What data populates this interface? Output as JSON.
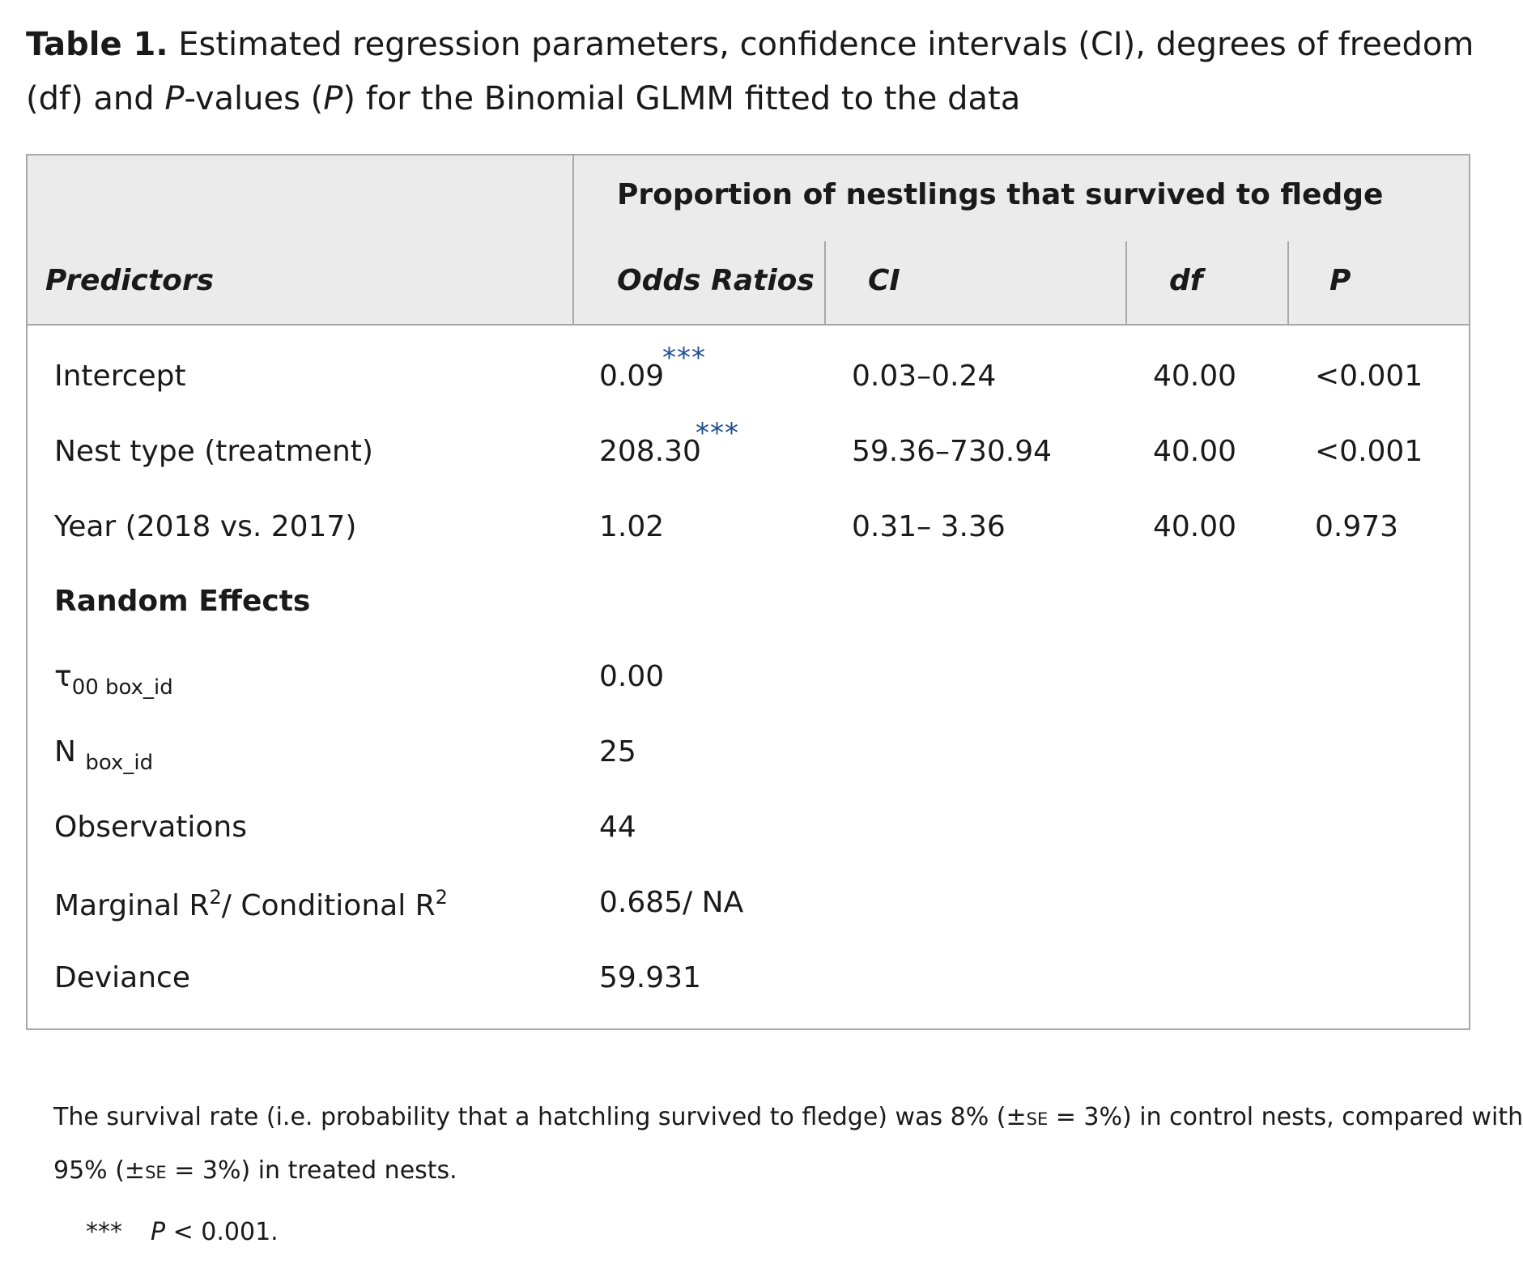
{
  "caption": {
    "label": "Table 1.",
    "part1": " Estimated regression parameters, confidence intervals (CI), degrees of freedom (df) and ",
    "p_italic_1": "P",
    "part2": "-values (",
    "p_italic_2": "P",
    "part3": ") for the Binomial GLMM fitted to the data"
  },
  "header": {
    "group_title": "Proportion of nestlings that survived to fledge",
    "columns": [
      "Predictors",
      "Odds Ratios",
      "CI",
      "df",
      "P"
    ]
  },
  "rows": [
    {
      "predictor": "Intercept",
      "odds": "0.09",
      "stars": "***",
      "ci": "0.03–0.24",
      "df": "40.00",
      "p": "<0.001"
    },
    {
      "predictor": "Nest type (treatment)",
      "odds": "208.30",
      "stars": "***",
      "ci": "59.36–730.94",
      "df": "40.00",
      "p": "<0.001"
    },
    {
      "predictor": "Year (2018 vs. 2017)",
      "odds": "1.02",
      "stars": "",
      "ci": "0.31– 3.36",
      "df": "40.00",
      "p": "0.973"
    }
  ],
  "random_effects": {
    "heading": "Random Effects",
    "tau_symbol": "τ",
    "tau_sub": "00 box_id",
    "tau_value": "0.00",
    "n_symbol": "N",
    "n_sub": "box_id",
    "n_value": "25",
    "observations_label": "Observations",
    "observations_value": "44",
    "r2_label_a": "Marginal R",
    "r2_sup": "2",
    "r2_label_b": "/ Conditional R",
    "r2_value": "0.685/ NA",
    "deviance_label": "Deviance",
    "deviance_value": "59.931"
  },
  "footnote": {
    "line1_a": "The survival rate (i.e. probability that a hatchling survived to fledge) was 8% (±",
    "se": "SE",
    "line1_b": " = 3%) in control nests, compared with",
    "line2_a": "95% (±",
    "line2_b": " = 3%) in treated nests.",
    "legend_stars": "***",
    "legend_p": "P",
    "legend_text": " < 0.001."
  }
}
